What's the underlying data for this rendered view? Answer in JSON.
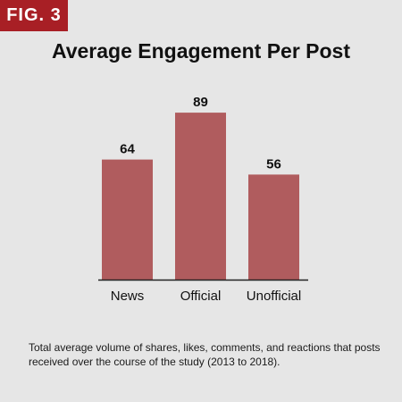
{
  "figure_label": "FIG. 3",
  "caption": "Total average volume of shares, likes, comments, and reactions that posts received over the course of the study (2013 to 2018).",
  "chart_data": {
    "type": "bar",
    "title": "Average Engagement Per Post",
    "categories": [
      "News",
      "Official",
      "Unofficial"
    ],
    "values": [
      64,
      89,
      56
    ],
    "xlabel": "",
    "ylabel": "",
    "ylim": [
      0,
      100
    ],
    "grid": false,
    "data_labels": true,
    "bar_color": "#b05c5e"
  },
  "colors": {
    "background": "#e6e6e6",
    "accent": "#a81f25",
    "bar": "#b05c5e",
    "text": "#111111"
  }
}
